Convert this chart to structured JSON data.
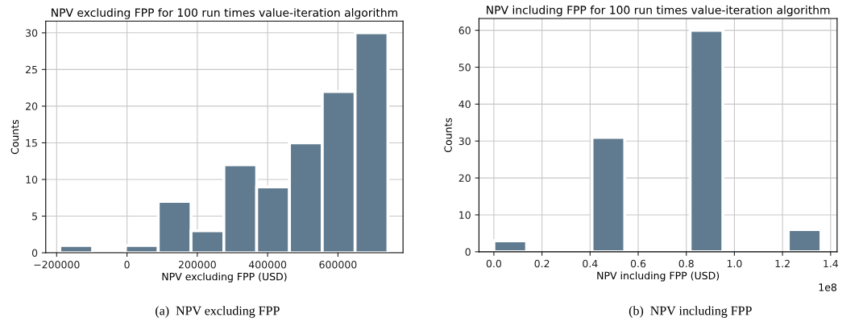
{
  "chart_data": [
    {
      "type": "histogram",
      "title": "NPV excluding FPP for 100 run times value-iteration algorithm",
      "xlabel": "NPV excluding FPP (USD)",
      "ylabel": "Counts",
      "bins": [
        -191000,
        -97700,
        -4400,
        88900,
        182200,
        275500,
        368800,
        462100,
        555400,
        648700,
        742000
      ],
      "values": [
        1,
        0,
        1,
        7,
        3,
        12,
        9,
        15,
        22,
        30
      ],
      "color": "#607b8f",
      "xlim": [
        -231000,
        785000
      ],
      "ylim": [
        0,
        31.6
      ],
      "xticks": [
        {
          "value": -200000,
          "label": "−200000"
        },
        0,
        200000,
        400000,
        600000
      ],
      "yticks": [
        0,
        5,
        10,
        15,
        20,
        25,
        30
      ],
      "grid": true,
      "legend": false,
      "annotations": [
        "(a)  NPV excluding FPP"
      ]
    },
    {
      "type": "histogram",
      "title": "NPV including FPP for 100 run times value-iteration algorithm",
      "xlabel": "NPV including FPP (USD)",
      "ylabel": "Counts",
      "bins": [
        0,
        0.136,
        0.272,
        0.408,
        0.544,
        0.68,
        0.816,
        0.952,
        1.088,
        1.224,
        1.36
      ],
      "values": [
        3,
        0,
        0,
        31,
        0,
        0,
        60,
        0,
        0,
        6
      ],
      "color": "#607b8f",
      "xlim": [
        -0.062,
        1.427
      ],
      "ylim": [
        0,
        63.2
      ],
      "xticks": [
        {
          "value": 0,
          "label": "0.0"
        },
        0.2,
        0.4,
        0.6,
        0.8,
        {
          "value": 1,
          "label": "1.0"
        },
        1.2,
        1.4
      ],
      "yticks": [
        0,
        10,
        20,
        30,
        40,
        50,
        60
      ],
      "grid": true,
      "legend": false,
      "annotations": [
        "(b)  NPV including FPP",
        "1e8"
      ]
    }
  ]
}
